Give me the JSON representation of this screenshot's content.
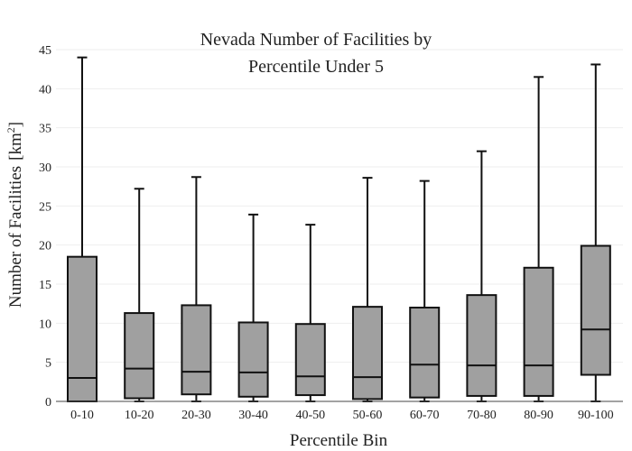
{
  "chart_data": {
    "type": "box",
    "title": [
      "Nevada Number of Facilities by",
      "Percentile Under 5"
    ],
    "xlabel": "Percentile Bin",
    "ylabel": "Number of Facilities",
    "ylabel_unit_base": "[km",
    "ylabel_unit_sup": "2",
    "ylabel_unit_close": "]",
    "ylim": [
      0,
      45
    ],
    "yticks": [
      0,
      5,
      10,
      15,
      20,
      25,
      30,
      35,
      40,
      45
    ],
    "grid": true,
    "box_color": "#a0a0a0",
    "line_color": "#111111",
    "categories": [
      "0-10",
      "10-20",
      "20-30",
      "30-40",
      "40-50",
      "50-60",
      "60-70",
      "70-80",
      "80-90",
      "90-100"
    ],
    "boxes": [
      {
        "min": 0,
        "q1": 0,
        "median": 3.0,
        "q3": 18.5,
        "max": 44.0
      },
      {
        "min": 0,
        "q1": 0.4,
        "median": 4.2,
        "q3": 11.3,
        "max": 27.2
      },
      {
        "min": 0,
        "q1": 0.9,
        "median": 3.8,
        "q3": 12.3,
        "max": 28.7
      },
      {
        "min": 0,
        "q1": 0.6,
        "median": 3.7,
        "q3": 10.1,
        "max": 23.9
      },
      {
        "min": 0,
        "q1": 0.8,
        "median": 3.2,
        "q3": 9.9,
        "max": 22.6
      },
      {
        "min": 0,
        "q1": 0.3,
        "median": 3.1,
        "q3": 12.1,
        "max": 28.6
      },
      {
        "min": 0,
        "q1": 0.5,
        "median": 4.7,
        "q3": 12.0,
        "max": 28.2
      },
      {
        "min": 0,
        "q1": 0.7,
        "median": 4.6,
        "q3": 13.6,
        "max": 32.0
      },
      {
        "min": 0,
        "q1": 0.7,
        "median": 4.6,
        "q3": 17.1,
        "max": 41.5
      },
      {
        "min": 0,
        "q1": 3.4,
        "median": 9.2,
        "q3": 19.9,
        "max": 43.1
      }
    ]
  }
}
